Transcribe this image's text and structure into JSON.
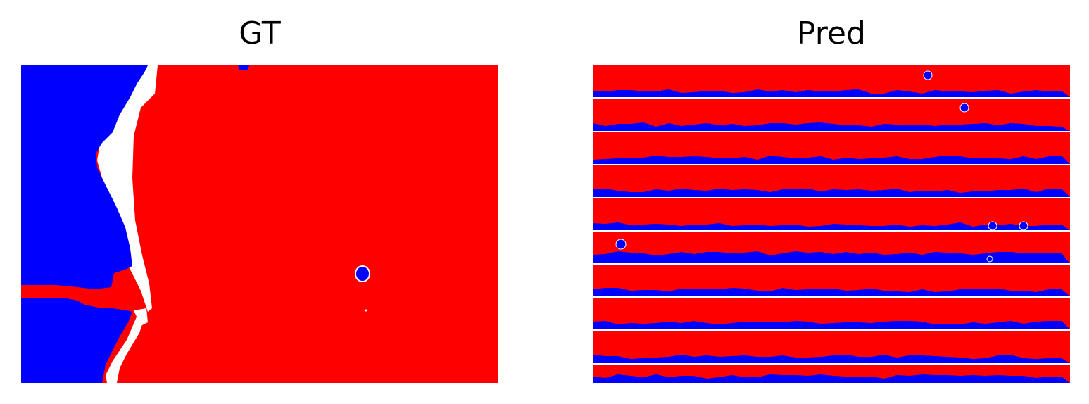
{
  "panels": [
    {
      "title": "GT"
    },
    {
      "title": "Pred"
    }
  ],
  "colors": {
    "background": "#ffffff",
    "class_a": "#ff0000",
    "class_b": "#0000ff",
    "unlabeled": "#ffffff"
  }
}
